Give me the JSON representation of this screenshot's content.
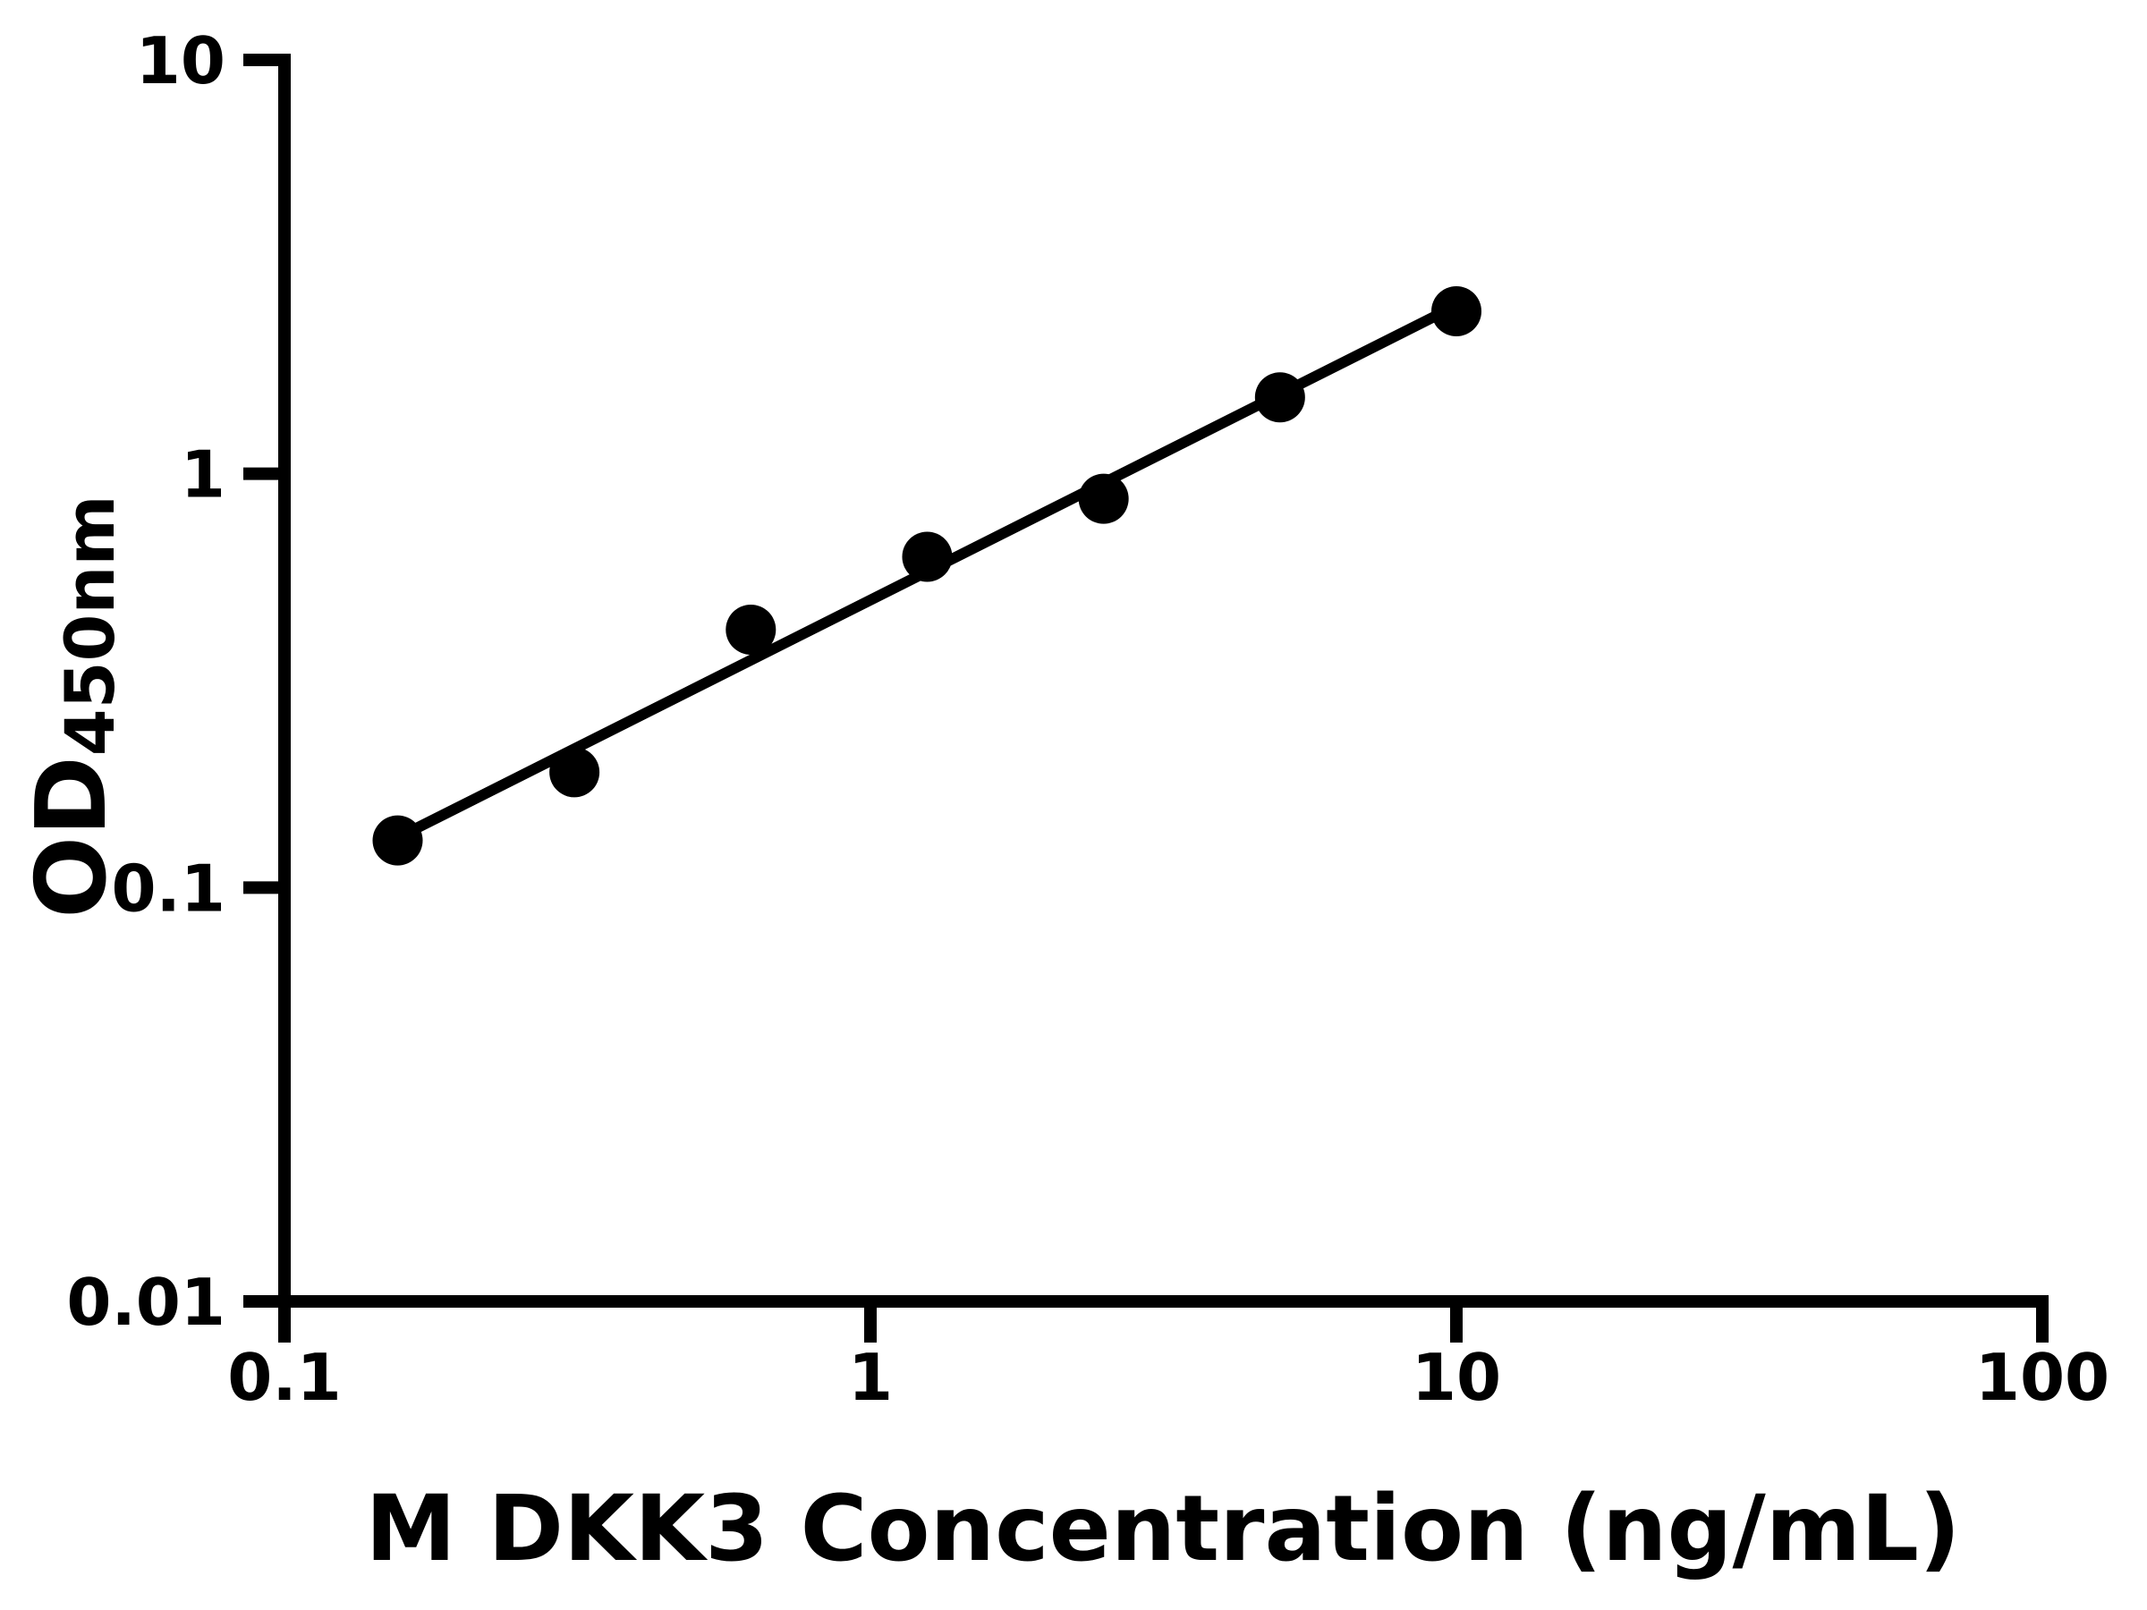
{
  "chart_data": {
    "type": "scatter",
    "title": "",
    "xlabel": "M DKK3 Concentration (ng/mL)",
    "ylabel": "OD450nm",
    "ylabel_main": "OD",
    "ylabel_sub": "450nm",
    "x_scale": "log",
    "y_scale": "log",
    "xlim": [
      0.1,
      100
    ],
    "ylim": [
      0.01,
      10
    ],
    "x_ticks": [
      0.1,
      1,
      10,
      100
    ],
    "x_tick_labels": [
      "0.1",
      "1",
      "10",
      "100"
    ],
    "y_ticks": [
      0.01,
      0.1,
      1,
      10
    ],
    "y_tick_labels": [
      "0.01",
      "0.1",
      "1",
      "10"
    ],
    "grid": false,
    "legend": false,
    "axis_color": "#000000",
    "marker_color": "#000000",
    "series": [
      {
        "marker": "circle",
        "color": "#000000",
        "points": [
          {
            "x": 0.156,
            "y": 0.13
          },
          {
            "x": 0.3125,
            "y": 0.19
          },
          {
            "x": 0.625,
            "y": 0.42
          },
          {
            "x": 1.25,
            "y": 0.63
          },
          {
            "x": 2.5,
            "y": 0.87
          },
          {
            "x": 5,
            "y": 1.53
          },
          {
            "x": 10,
            "y": 2.47
          }
        ]
      }
    ],
    "trendline": {
      "color": "#000000",
      "x1": 0.156,
      "y1": 0.132,
      "x2": 10,
      "y2": 2.55
    }
  }
}
